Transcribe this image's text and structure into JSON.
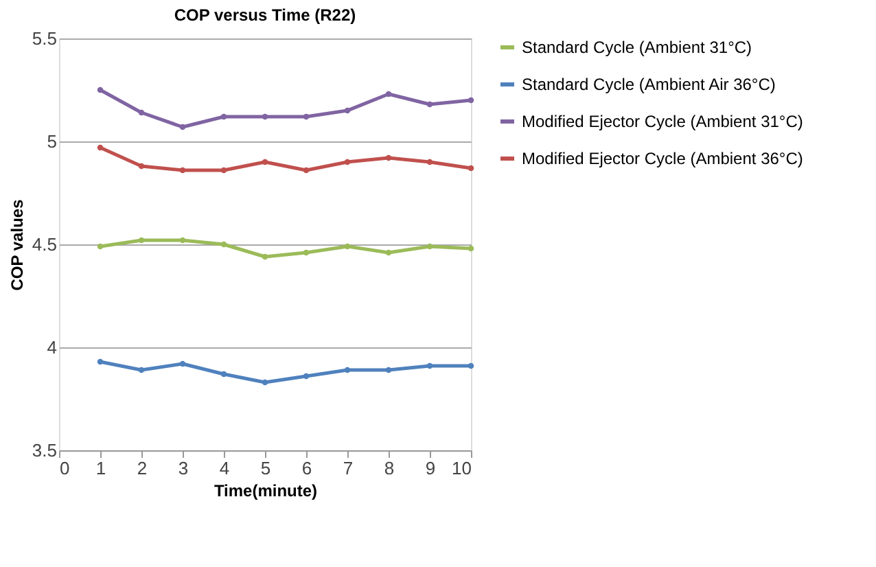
{
  "chart_data": {
    "type": "line",
    "title": "COP versus Time (R22)",
    "xlabel": "Time(minute)",
    "ylabel": "COP values",
    "x": [
      1,
      2,
      3,
      4,
      5,
      6,
      7,
      8,
      9,
      10
    ],
    "series": [
      {
        "name": "Standard Cycle (Ambient 31°C)",
        "color": "#9bbb59",
        "values": [
          4.49,
          4.52,
          4.52,
          4.5,
          4.44,
          4.46,
          4.49,
          4.46,
          4.49,
          4.48
        ]
      },
      {
        "name": "Standard Cycle (Ambient Air 36°C)",
        "color": "#4f81bd",
        "values": [
          3.93,
          3.89,
          3.92,
          3.87,
          3.83,
          3.86,
          3.89,
          3.89,
          3.91,
          3.91
        ]
      },
      {
        "name": "Modified Ejector Cycle (Ambient 31°C)",
        "color": "#8064a2",
        "values": [
          5.25,
          5.14,
          5.07,
          5.12,
          5.12,
          5.12,
          5.15,
          5.23,
          5.18,
          5.2
        ]
      },
      {
        "name": "Modified Ejector Cycle (Ambient 36°C)",
        "color": "#c0504d",
        "values": [
          4.97,
          4.88,
          4.86,
          4.86,
          4.9,
          4.86,
          4.9,
          4.92,
          4.9,
          4.87
        ]
      }
    ],
    "xlim": [
      0,
      10
    ],
    "xticks": [
      0,
      1,
      2,
      3,
      4,
      5,
      6,
      7,
      8,
      9,
      10
    ],
    "ylim": [
      3.5,
      5.5
    ],
    "yticks": [
      3.5,
      4,
      4.5,
      5,
      5.5
    ],
    "grid": "y",
    "legend": "right",
    "marker": "circle",
    "line_style": "solid"
  }
}
